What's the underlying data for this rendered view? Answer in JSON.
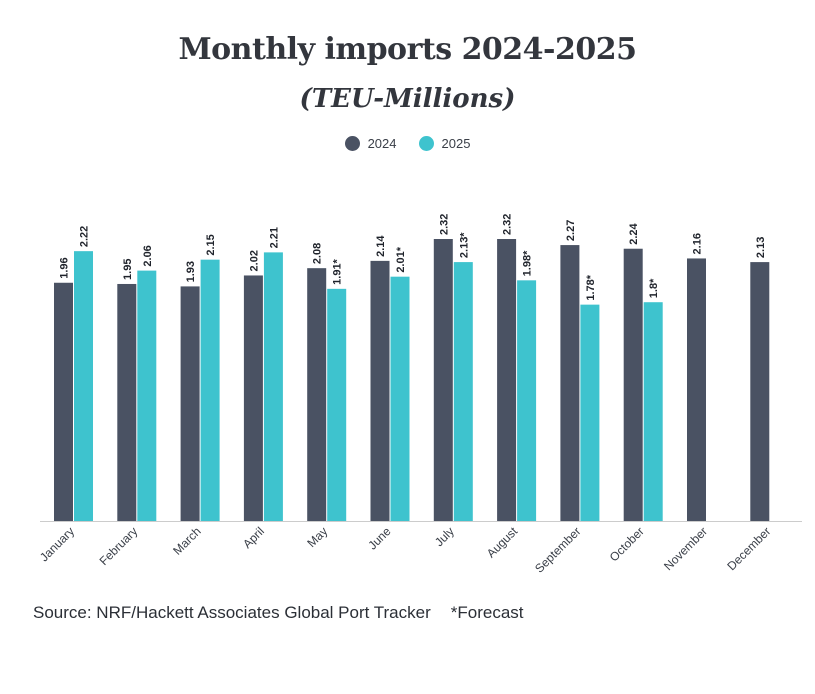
{
  "title": "Monthly imports 2024-2025",
  "subtitle": "(TEU-Millions)",
  "source": "Source: NRF/Hackett Associates Global Port Tracker",
  "footnote": "*Forecast",
  "colors": {
    "2024": "#4a5263",
    "2025": "#3ec3ce",
    "axis": "#cccccc",
    "text": "#2a2f3a"
  },
  "chart_data": {
    "type": "bar",
    "categories": [
      "January",
      "February",
      "March",
      "April",
      "May",
      "June",
      "July",
      "August",
      "September",
      "October",
      "November",
      "December"
    ],
    "series": [
      {
        "name": "2024",
        "values": [
          1.96,
          1.95,
          1.93,
          2.02,
          2.08,
          2.14,
          2.32,
          2.32,
          2.27,
          2.24,
          2.16,
          2.13
        ],
        "labels": [
          "1.96",
          "1.95",
          "1.93",
          "2.02",
          "2.08",
          "2.14",
          "2.32",
          "2.32",
          "2.27",
          "2.24",
          "2.16",
          "2.13"
        ]
      },
      {
        "name": "2025",
        "values": [
          2.22,
          2.06,
          2.15,
          2.21,
          1.91,
          2.01,
          2.13,
          1.98,
          1.78,
          1.8,
          null,
          null
        ],
        "labels": [
          "2.22",
          "2.06",
          "2.15",
          "2.21",
          "1.91*",
          "2.01*",
          "2.13*",
          "1.98*",
          "1.78*",
          "1.8*",
          "",
          ""
        ]
      }
    ],
    "title": "Monthly imports 2024-2025",
    "subtitle": "(TEU-Millions)",
    "legend": "top-center",
    "grid": false
  }
}
